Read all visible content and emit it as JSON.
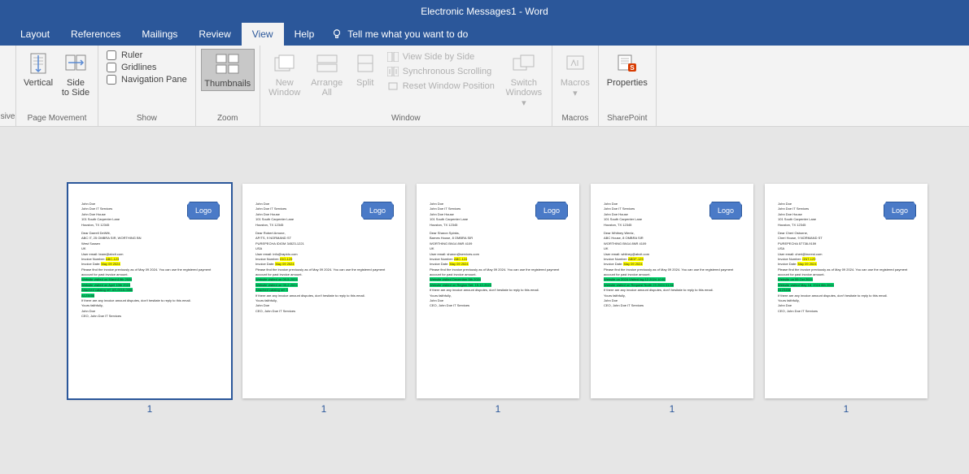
{
  "window": {
    "title": "Electronic Messages1  -  Word"
  },
  "tabs": {
    "items": [
      "Layout",
      "References",
      "Mailings",
      "Review",
      "View",
      "Help"
    ],
    "active_index": 4,
    "tell_me": "Tell me what you want to do"
  },
  "ribbon": {
    "groups": {
      "immersive": {
        "label": "sive",
        "btn": ""
      },
      "page_movement": {
        "label": "Page Movement",
        "vertical": "Vertical",
        "side": "Side\nto Side"
      },
      "show": {
        "label": "Show",
        "ruler": "Ruler",
        "gridlines": "Gridlines",
        "nav": "Navigation Pane",
        "ruler_checked": false,
        "gridlines_checked": false,
        "nav_checked": false
      },
      "zoom": {
        "label": "Zoom",
        "thumbnails": "Thumbnails"
      },
      "window": {
        "label": "Window",
        "new_window": "New\nWindow",
        "arrange_all": "Arrange\nAll",
        "split": "Split",
        "side_by_side": "View Side by Side",
        "sync": "Synchronous Scrolling",
        "reset": "Reset Window Position",
        "switch": "Switch\nWindows"
      },
      "macros": {
        "label": "Macros",
        "macros": "Macros"
      },
      "sharepoint": {
        "label": "SharePoint",
        "properties": "Properties"
      }
    }
  },
  "thumbnails": {
    "selected_index": 0,
    "logo_text": "Logo",
    "page_label": "1",
    "pages": [
      {
        "header": [
          "John Doe",
          "John Doe IT Services",
          "John Doe House",
          "101 South Carpenter Lane",
          "Houston, TX 12345"
        ],
        "salutation": "Dear Darrell DeWitt,",
        "addr": [
          "ABC IT, 25 OMBRA SIR, WORTHING BN",
          "West Sussex",
          "UK"
        ],
        "email": "User email: team@abcit.com",
        "inv_no_label": "Invoice Number:",
        "inv_no": "ABC-123",
        "inv_date_label": "Invoice Date:",
        "inv_date": "May 09 2024",
        "body1": "Please find the invoice previously as of May 09 2024. You can use the registered payment account for past invoice amount.",
        "green_lines": [
          "Website visited on March19th 2024",
          "Website visited on April 10th 2024",
          "Attached catalog ref: AS-0015-0056",
          "A123456"
        ],
        "body2": "If there are any invoice amount disputes, don't hesitate to reply to this email.",
        "sign": [
          "Yours faithfully,",
          "John Doe",
          "CEO, John Doe IT Services"
        ]
      },
      {
        "header": [
          "John Doe",
          "John Doe IT Services",
          "John Doe House",
          "101 South Carpenter Lane",
          "Houston, TX 12345"
        ],
        "salutation": "Dear Robert Arnone,",
        "addr": [
          "AP/TS, 9 NORMAND ST",
          "PUREPECHA IDIOM 34523-1221",
          "USA"
        ],
        "email": "User email: info@rapido.com",
        "inv_no_label": "Invoice Number:",
        "inv_no": "IDO-129",
        "inv_date_label": "Invoice Date:",
        "inv_date": "May 09 2024",
        "body1": "Please find the invoice previously as of May 09 2024. You can use the registered payment account for past invoice amount.",
        "green_lines": [
          "Website visited on 00-5-2024",
          "Website visited on 00-2-2024",
          "Attached catalog ref: 0"
        ],
        "body2": "If there are any invoice amount disputes, don't hesitate to reply to this email.",
        "sign": [
          "Yours faithfully,",
          "John Doe",
          "CEO, John Doe IT Services"
        ]
      },
      {
        "header": [
          "John Doe",
          "John Doe IT Services",
          "John Doe House",
          "101 South Carpenter Lane",
          "Houston, TX 12345"
        ],
        "salutation": "Dear Sharon Spinks,",
        "addr": [
          "Barnes House, 8 OMBRA SIR",
          "WORTHING BN14 8NR 4109",
          "UK"
        ],
        "email": "User email: sharon@services.com",
        "inv_no_label": "Invoice Number:",
        "inv_no": "ABC-124",
        "inv_date_label": "Invoice Date:",
        "inv_date": "May 09 2024",
        "body1": "Please find the invoice previously as of May 09 2024. You can use the registered payment account for past invoice amount.",
        "green_lines": [
          "Website visited December 5th 2024",
          "Website visited on Region Set: 15-12-2023"
        ],
        "body2": "If there are any invoice amount disputes, don't hesitate to reply to this email.",
        "sign": [
          "Yours faithfully,",
          "John Doe",
          "CEO, John Doe IT Services"
        ]
      },
      {
        "header": [
          "John Doe",
          "John Doe IT Services",
          "John Doe House",
          "101 South Carpenter Lane",
          "Houston, TX 12345"
        ],
        "salutation": "Dear Whitney Wentz,",
        "addr": [
          "ABC House, 8 OMBRA SIR",
          "WORTHING BN14 8NR 4109",
          "UK"
        ],
        "email": "User email: whitney@abcit.com",
        "inv_no_label": "Invoice Number:",
        "inv_no": "ABDF-129",
        "inv_date_label": "Invoice Date:",
        "inv_date": "May 09 2024",
        "body1": "Please find the invoice previously as of May 09 2024. You can use the registered payment account for past invoice amount.",
        "green_lines": [
          "Website on 2024 Visited log 12 2024 10:52",
          "Website visited on Request North 23 2024 01:58"
        ],
        "body2": "If there are any invoice amount disputes, don't hesitate to reply to this email.",
        "sign": [
          "Yours faithfully,",
          "John Doe",
          "CEO, John Doe IT Services"
        ]
      },
      {
        "header": [
          "John Doe",
          "John Doe IT Services",
          "John Doe House",
          "101 South Carpenter Lane",
          "Houston, TX 12345"
        ],
        "salutation": "Dear Cheri Osborne,",
        "addr": [
          "Cheri House, 9 NORMAND ST",
          "PUREPECHA 57738-9159",
          "USA"
        ],
        "email": "User email: cheri@increst.com",
        "inv_no_label": "Invoice Number:",
        "inv_no": "GNT-129",
        "inv_date_label": "Invoice Date:",
        "inv_date": "May 09 2024",
        "body1": "Please find the invoice previously as of May 09 2024. You can use the registered payment account for past invoice amount.",
        "green_lines": [
          "Website on 09 Oct 2024",
          "Website visited May 18, 2024  8th 2024",
          "A123456"
        ],
        "body2": "If there are any invoice amount disputes, don't hesitate to reply to this email.",
        "sign": [
          "Yours faithfully,",
          "John Doe",
          "CEO, John Doe IT Services"
        ]
      }
    ]
  },
  "colors": {
    "brand": "#2b579a",
    "ribbon_bg": "#f3f3f3",
    "doc_bg": "#e6e6e6",
    "highlight_yellow": "#ffff00",
    "highlight_green": "#00d26a"
  }
}
